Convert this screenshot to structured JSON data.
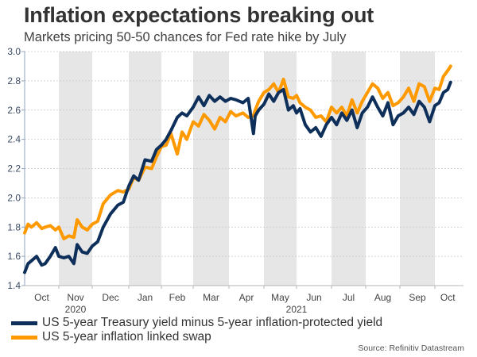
{
  "chart_data": {
    "type": "line",
    "title": "Inflation expectations breaking out",
    "subtitle": "Markets pricing 50-50 chances for Fed rate hike by July",
    "xlabel": "",
    "ylabel": "",
    "ylim": [
      1.4,
      3.0
    ],
    "yticks": [
      "1.4",
      "1.6",
      "1.8",
      "2.0",
      "2.2",
      "2.4",
      "2.6",
      "2.8",
      "3.0"
    ],
    "grid": true,
    "x_range_months": [
      0,
      12.85
    ],
    "xticks": [
      {
        "label": "Oct",
        "m": 0.5
      },
      {
        "label": "Nov",
        "m": 1.5
      },
      {
        "label": "Dec",
        "m": 2.5
      },
      {
        "label": "Jan",
        "m": 3.5
      },
      {
        "label": "Feb",
        "m": 4.5
      },
      {
        "label": "Mar",
        "m": 5.5
      },
      {
        "label": "Apr",
        "m": 6.5
      },
      {
        "label": "May",
        "m": 7.5
      },
      {
        "label": "Jun",
        "m": 8.5
      },
      {
        "label": "Jul",
        "m": 9.5
      },
      {
        "label": "Aug",
        "m": 10.5
      },
      {
        "label": "Sep",
        "m": 11.5
      },
      {
        "label": "Oct",
        "m": 12.45
      }
    ],
    "month_boundaries": [
      1,
      2,
      3,
      4,
      5,
      6,
      7,
      8,
      9,
      10,
      11,
      12
    ],
    "shaded_months": [
      [
        1,
        2
      ],
      [
        3,
        4
      ],
      [
        5,
        6
      ],
      [
        7,
        8
      ],
      [
        9,
        10
      ],
      [
        11,
        12
      ]
    ],
    "year_labels": [
      {
        "label": "2020",
        "m": 1.5
      },
      {
        "label": "2021",
        "m": 8.0
      }
    ],
    "legend_position": "bottom-left",
    "series": [
      {
        "name": "US 5-year Treasury yield minus 5-year inflation-protected yield",
        "color": "#0d2f5a",
        "x": [
          0.0,
          0.1,
          0.2,
          0.35,
          0.5,
          0.6,
          0.75,
          0.9,
          1.0,
          1.15,
          1.3,
          1.45,
          1.55,
          1.7,
          1.85,
          2.0,
          2.15,
          2.3,
          2.5,
          2.7,
          2.85,
          3.0,
          3.15,
          3.3,
          3.5,
          3.7,
          3.85,
          4.0,
          4.15,
          4.3,
          4.5,
          4.65,
          4.8,
          5.0,
          5.15,
          5.3,
          5.45,
          5.6,
          5.75,
          5.9,
          6.05,
          6.2,
          6.4,
          6.55,
          6.7,
          6.75,
          6.85,
          7.0,
          7.15,
          7.3,
          7.45,
          7.6,
          7.75,
          7.9,
          8.0,
          8.1,
          8.25,
          8.4,
          8.55,
          8.7,
          8.85,
          9.0,
          9.15,
          9.3,
          9.45,
          9.6,
          9.75,
          9.9,
          10.05,
          10.2,
          10.35,
          10.5,
          10.65,
          10.8,
          10.95,
          11.1,
          11.25,
          11.4,
          11.55,
          11.7,
          11.85,
          12.0,
          12.15,
          12.3,
          12.45,
          12.55
        ],
        "values": [
          1.49,
          1.55,
          1.57,
          1.6,
          1.54,
          1.55,
          1.6,
          1.66,
          1.6,
          1.59,
          1.6,
          1.55,
          1.68,
          1.63,
          1.62,
          1.67,
          1.7,
          1.8,
          1.89,
          1.95,
          1.97,
          2.08,
          2.15,
          2.12,
          2.26,
          2.25,
          2.33,
          2.36,
          2.4,
          2.46,
          2.55,
          2.58,
          2.56,
          2.62,
          2.69,
          2.63,
          2.7,
          2.66,
          2.69,
          2.66,
          2.68,
          2.67,
          2.65,
          2.68,
          2.44,
          2.56,
          2.6,
          2.64,
          2.71,
          2.66,
          2.72,
          2.74,
          2.6,
          2.63,
          2.58,
          2.61,
          2.5,
          2.45,
          2.48,
          2.42,
          2.5,
          2.55,
          2.5,
          2.58,
          2.53,
          2.6,
          2.48,
          2.58,
          2.62,
          2.69,
          2.62,
          2.56,
          2.65,
          2.5,
          2.56,
          2.58,
          2.62,
          2.57,
          2.66,
          2.62,
          2.52,
          2.63,
          2.65,
          2.72,
          2.74,
          2.79
        ]
      },
      {
        "name": "US 5-year inflation linked swap",
        "color": "#ff9900",
        "x": [
          0.0,
          0.1,
          0.2,
          0.35,
          0.5,
          0.6,
          0.75,
          0.9,
          1.0,
          1.15,
          1.3,
          1.45,
          1.55,
          1.7,
          1.85,
          2.0,
          2.15,
          2.3,
          2.5,
          2.7,
          2.85,
          3.0,
          3.15,
          3.3,
          3.5,
          3.7,
          3.85,
          4.0,
          4.15,
          4.3,
          4.5,
          4.65,
          4.8,
          5.0,
          5.15,
          5.3,
          5.45,
          5.6,
          5.75,
          5.9,
          6.05,
          6.2,
          6.4,
          6.55,
          6.7,
          6.75,
          6.85,
          7.0,
          7.15,
          7.3,
          7.45,
          7.6,
          7.75,
          7.9,
          8.0,
          8.1,
          8.25,
          8.4,
          8.55,
          8.7,
          8.85,
          9.0,
          9.15,
          9.3,
          9.45,
          9.6,
          9.75,
          9.9,
          10.05,
          10.2,
          10.35,
          10.5,
          10.65,
          10.8,
          10.95,
          11.1,
          11.25,
          11.4,
          11.55,
          11.7,
          11.85,
          12.0,
          12.15,
          12.3,
          12.45,
          12.55
        ],
        "values": [
          1.76,
          1.82,
          1.8,
          1.83,
          1.79,
          1.8,
          1.81,
          1.78,
          1.8,
          1.72,
          1.74,
          1.73,
          1.85,
          1.8,
          1.78,
          1.82,
          1.84,
          1.96,
          2.02,
          2.05,
          2.04,
          2.06,
          2.14,
          2.12,
          2.21,
          2.2,
          2.28,
          2.35,
          2.36,
          2.44,
          2.3,
          2.45,
          2.4,
          2.52,
          2.49,
          2.57,
          2.53,
          2.47,
          2.55,
          2.52,
          2.59,
          2.56,
          2.58,
          2.55,
          2.56,
          2.6,
          2.66,
          2.72,
          2.74,
          2.78,
          2.72,
          2.81,
          2.69,
          2.68,
          2.7,
          2.65,
          2.62,
          2.6,
          2.55,
          2.56,
          2.52,
          2.62,
          2.58,
          2.62,
          2.56,
          2.67,
          2.58,
          2.66,
          2.72,
          2.78,
          2.75,
          2.68,
          2.72,
          2.63,
          2.65,
          2.69,
          2.75,
          2.66,
          2.78,
          2.76,
          2.66,
          2.75,
          2.74,
          2.83,
          2.87,
          2.9
        ]
      }
    ]
  },
  "source": "Source: Refinitiv Datastream"
}
